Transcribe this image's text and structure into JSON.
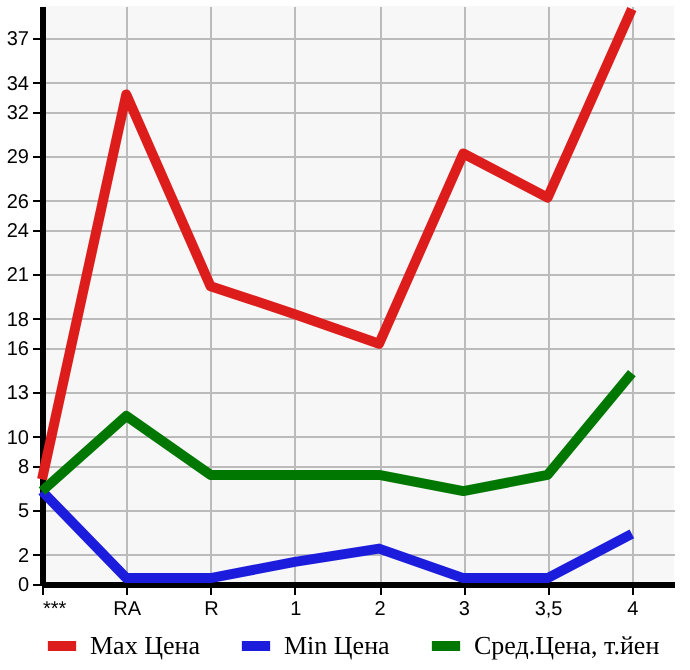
{
  "chart_data": {
    "type": "line",
    "categories": [
      "***",
      "RA",
      "R",
      "1",
      "2",
      "3",
      "3,5",
      "4"
    ],
    "series": [
      {
        "name": "Max Цена",
        "color": "#dd1c1c",
        "values": [
          7.1,
          33.2,
          20.2,
          18.3,
          16.3,
          29.2,
          26.2,
          39
        ]
      },
      {
        "name": "Min Цена",
        "color": "#1c1cdd",
        "values": [
          6.3,
          0.4,
          0.4,
          1.5,
          2.4,
          0.4,
          0.4,
          3.4
        ]
      },
      {
        "name": "Сред.Цена, т.йен",
        "color": "#007700",
        "values": [
          6.3,
          11.4,
          7.4,
          7.4,
          7.4,
          6.3,
          7.4,
          14.3
        ]
      }
    ],
    "ylim": [
      0,
      39.2
    ],
    "yticks": [
      0,
      2,
      5,
      8,
      10,
      13,
      16,
      18,
      21,
      24,
      26,
      29,
      32,
      34,
      37
    ],
    "grid": true,
    "legend": "bottom",
    "marker": "none",
    "line_style": "solid"
  }
}
